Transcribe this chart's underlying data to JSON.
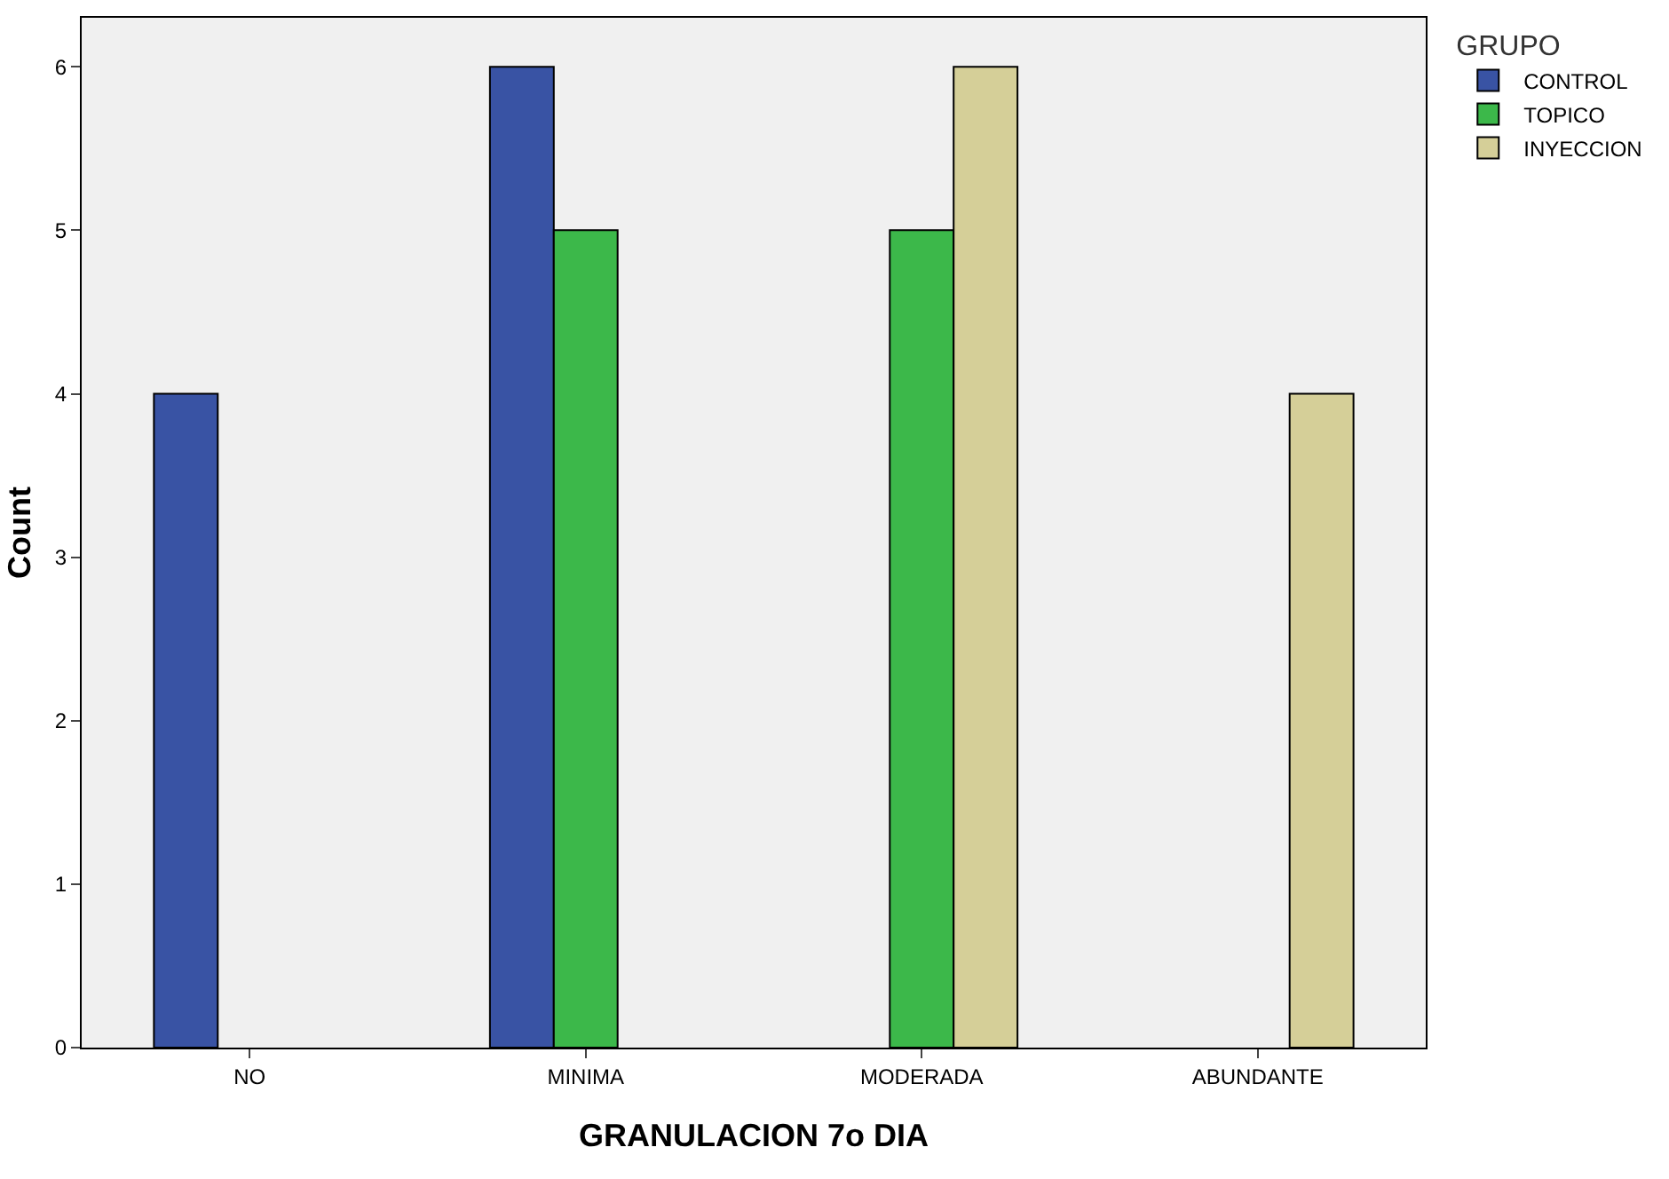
{
  "chart_data": {
    "type": "bar",
    "xlabel": "GRANULACION 7o DIA",
    "ylabel": "Count",
    "legend_title": "GRUPO",
    "categories": [
      "NO",
      "MINIMA",
      "MODERADA",
      "ABUNDANTE"
    ],
    "series": [
      {
        "name": "CONTROL",
        "color": "#3953a4",
        "values": [
          4,
          6,
          null,
          null
        ]
      },
      {
        "name": "TOPICO",
        "color": "#3cb84a",
        "values": [
          null,
          5,
          5,
          null
        ]
      },
      {
        "name": "INYECCION",
        "color": "#d5cf98",
        "values": [
          null,
          null,
          6,
          4
        ]
      }
    ],
    "ylim": [
      0,
      6.3
    ],
    "yticks": [
      0,
      1,
      2,
      3,
      4,
      5,
      6
    ],
    "grid": false,
    "legend": "top right"
  }
}
